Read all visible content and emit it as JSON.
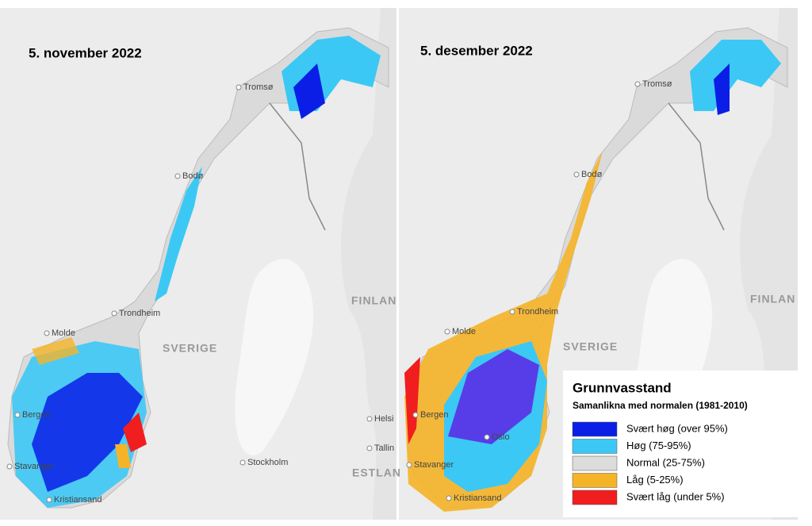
{
  "panels": [
    {
      "title": "5. november 2022",
      "labels": [
        "Tromsø",
        "Bodø",
        "Trondheim",
        "Molde",
        "Bergen",
        "Stavanger",
        "Kristiansand",
        "SVERIGE",
        "FINLAN",
        "Helsi",
        "Tallin",
        "Stockholm",
        "ESTLAN"
      ]
    },
    {
      "title": "5. desember 2022",
      "labels": [
        "Tromsø",
        "Bodø",
        "Trondheim",
        "Molde",
        "Bergen",
        "Oslo",
        "Stavanger",
        "Kristiansand",
        "SVERIGE",
        "FINLAN"
      ]
    }
  ],
  "legend": {
    "title": "Grunnvasstand",
    "subtitle": "Samanlikna med normalen (1981-2010)",
    "items": [
      {
        "label": "Svært høg (over 95%)",
        "color": "#0a1ee6"
      },
      {
        "label": "Høg (75-95%)",
        "color": "#3cc8f5"
      },
      {
        "label": "Normal (25-75%)",
        "color": "#dcdcdc"
      },
      {
        "label": "Låg (5-25%)",
        "color": "#f5b428"
      },
      {
        "label": "Svært låg (under 5%)",
        "color": "#f01e1e"
      }
    ]
  }
}
